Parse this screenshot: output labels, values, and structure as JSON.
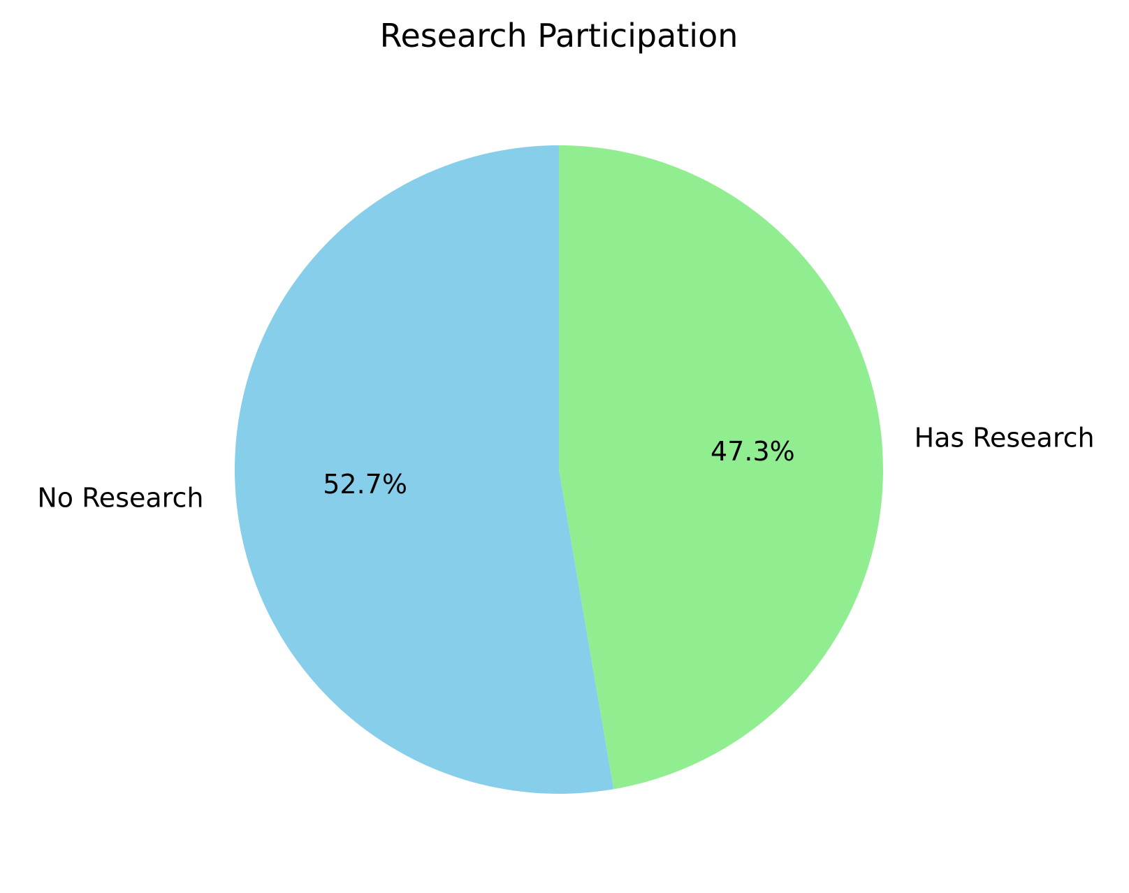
{
  "chart_data": {
    "type": "pie",
    "title": "Research Participation",
    "start_angle_deg": 90,
    "direction": "counterclockwise",
    "slices": [
      {
        "label": "No Research",
        "value": 52.7,
        "pct_label": "52.7%",
        "color": "#87CEEB"
      },
      {
        "label": "Has Research",
        "value": 47.3,
        "pct_label": "47.3%",
        "color": "#90EE90"
      }
    ]
  }
}
